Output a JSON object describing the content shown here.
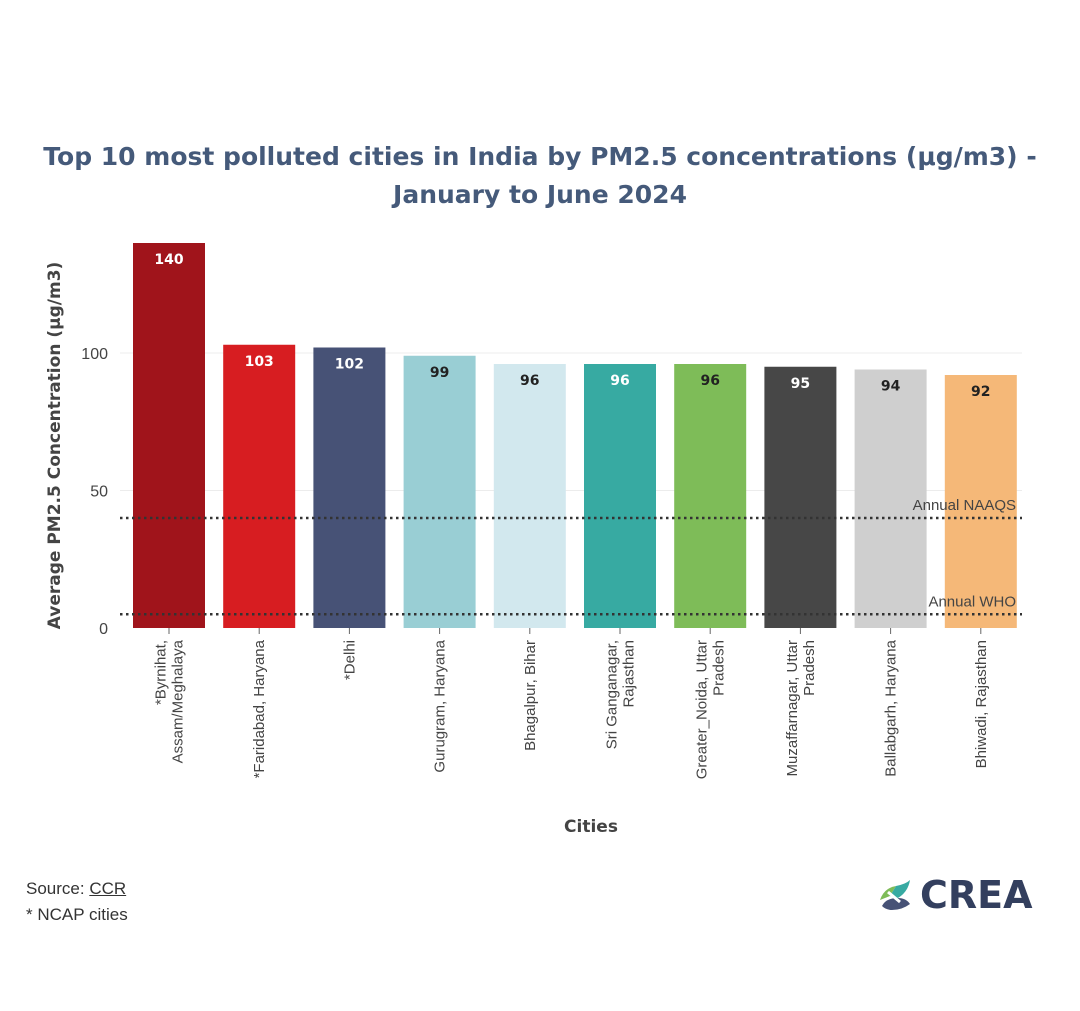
{
  "title_line1": "Top 10 most polluted cities in India by PM2.5 concentrations (μg/m3) -",
  "title_line2": "January to June 2024",
  "footer": {
    "source_label": "Source: ",
    "source_link": "CCR",
    "note": "* NCAP cities"
  },
  "logo": {
    "text": "CREA",
    "icon": "crea-leaf-icon"
  },
  "chart_data": {
    "type": "bar",
    "xlabel": "Cities",
    "ylabel": "Average PM2.5 Concentration (μg/m3)",
    "ylim": [
      0,
      140
    ],
    "yticks": [
      0,
      50,
      100
    ],
    "grid": true,
    "categories": [
      [
        "*Byrnihat,",
        "Assam/Meghalaya"
      ],
      [
        "*Faridabad, Haryana"
      ],
      [
        "*Delhi"
      ],
      [
        "Gurugram, Haryana"
      ],
      [
        "Bhagalpur, Bihar"
      ],
      [
        "Sri Ganganagar,",
        "Rajasthan"
      ],
      [
        "Greater_Noida, Uttar",
        "Pradesh"
      ],
      [
        "Muzaffarnagar, Uttar",
        "Pradesh"
      ],
      [
        "Ballabgarh, Haryana"
      ],
      [
        "Bhiwadi, Rajasthan"
      ]
    ],
    "values": [
      140,
      103,
      102,
      99,
      96,
      96,
      96,
      95,
      94,
      92
    ],
    "colors": [
      "#a0141b",
      "#d71d21",
      "#475276",
      "#99ced4",
      "#d2e8ee",
      "#37aaa2",
      "#7ebc58",
      "#474747",
      "#cfcfcf",
      "#f5b878"
    ],
    "label_colors": [
      "#ffffff",
      "#ffffff",
      "#ffffff",
      "#222222",
      "#222222",
      "#ffffff",
      "#222222",
      "#ffffff",
      "#222222",
      "#222222"
    ],
    "reference_lines": [
      {
        "name": "Annual NAAQS",
        "value": 40
      },
      {
        "name": "Annual WHO",
        "value": 5
      }
    ]
  }
}
